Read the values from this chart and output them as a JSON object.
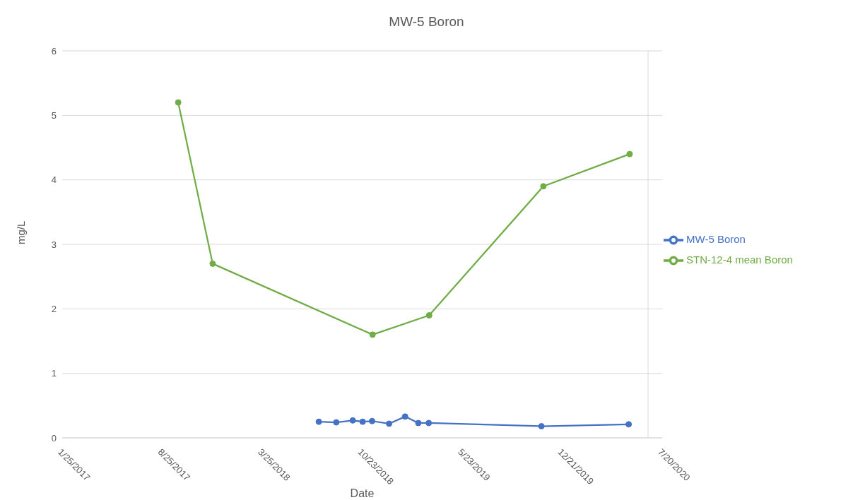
{
  "chart_data": {
    "type": "line",
    "title": "MW-5 Boron",
    "xlabel": "Date",
    "ylabel": "mg/L",
    "xlim": [
      "2017-01-25",
      "2020-07-20"
    ],
    "xticks": [
      {
        "value": "2017-01-25",
        "label": "1/25/2017"
      },
      {
        "value": "2017-08-25",
        "label": "8/25/2017"
      },
      {
        "value": "2018-03-25",
        "label": "3/25/2018"
      },
      {
        "value": "2018-10-23",
        "label": "10/23/2018"
      },
      {
        "value": "2019-05-23",
        "label": "5/23/2019"
      },
      {
        "value": "2019-12-21",
        "label": "12/21/2019"
      },
      {
        "value": "2020-07-20",
        "label": "7/20/2020"
      }
    ],
    "ylim": [
      0,
      6
    ],
    "yticks": [
      0,
      1,
      2,
      3,
      4,
      5,
      6
    ],
    "grid": "y",
    "legend": "right",
    "marker": "circle",
    "line_style": "solid",
    "series": [
      {
        "name": "MW-5 Boron",
        "color": "#4472c4",
        "x": [
          "2018-07-23",
          "2018-08-29",
          "2018-10-03",
          "2018-10-24",
          "2018-11-13",
          "2018-12-19",
          "2019-01-22",
          "2019-02-19",
          "2019-03-13",
          "2019-11-07",
          "2020-05-10"
        ],
        "values": [
          0.25,
          0.24,
          0.27,
          0.25,
          0.26,
          0.22,
          0.33,
          0.23,
          0.23,
          0.18,
          0.21
        ]
      },
      {
        "name": "STN-12-4 mean Boron",
        "color": "#70ad47",
        "x": [
          "2017-09-28",
          "2017-12-10",
          "2018-11-14",
          "2019-03-14",
          "2019-11-11",
          "2020-05-12"
        ],
        "values": [
          5.2,
          2.7,
          1.6,
          1.9,
          3.9,
          4.4
        ]
      }
    ]
  }
}
